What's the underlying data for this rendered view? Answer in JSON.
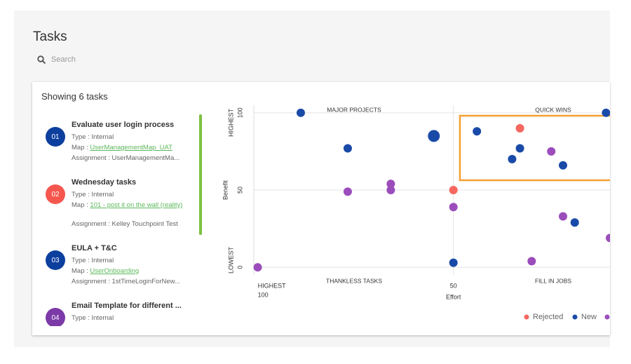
{
  "header": {
    "title": "Tasks",
    "search_placeholder": "Search"
  },
  "panel": {
    "title": "Showing 6 tasks"
  },
  "tasks": [
    {
      "number": "01",
      "color": "#0d3f9e",
      "title": "Evaluate user login process",
      "type": "Type : Internal",
      "map_label": "Map :",
      "map": "UserManagementMap_UAT",
      "assignment": "Assignment : UserManagementMa..."
    },
    {
      "number": "02",
      "color": "#f5574f",
      "title": "Wednesday tasks",
      "type": "Type : Internal",
      "map_label": "Map :",
      "map": "101 - post it on the wall (reality)",
      "assignment": "Assignment : Kelley Touchpoint Test"
    },
    {
      "number": "03",
      "color": "#0d3f9e",
      "title": "EULA + T&C",
      "type": "Type : Internal",
      "map_label": "Map :",
      "map": "UserOnboarding",
      "assignment": "Assignment : 1stTimeLoginForNew..."
    },
    {
      "number": "04",
      "color": "#7b3aa8",
      "title": "Email Template for different ...",
      "type": "Type : Internal"
    }
  ],
  "chart_data": {
    "type": "scatter",
    "quadrants": [
      "MAJOR PROJECTS",
      "QUICK WINS",
      "THANKLESS TASKS",
      "FILL IN JOBS"
    ],
    "x_label": "Effort",
    "y_label": "Benefit",
    "x_high_label": "HIGHEST",
    "y_high_label": "HIGHEST",
    "y_low_label": "LOWEST",
    "xlim": [
      101,
      10
    ],
    "ylim": [
      -4,
      104
    ],
    "xticks": [
      100,
      50
    ],
    "yticks": [
      100,
      50,
      0
    ],
    "grid": true,
    "series": [
      {
        "name": "Rejected",
        "color": "#f5675f",
        "x": [
          50,
          33
        ],
        "values": [
          50,
          90
        ]
      },
      {
        "name": "New",
        "color": "#1a4aa8",
        "x": [
          89,
          77,
          55,
          50,
          44,
          33,
          35,
          22,
          11,
          19
        ],
        "values": [
          100,
          77,
          85,
          3,
          88,
          77,
          70,
          66,
          100,
          29
        ],
        "sizes": [
          1,
          1,
          2,
          1,
          1,
          1,
          1,
          1,
          1,
          1
        ]
      },
      {
        "color": "#9b4dbb",
        "x": [
          77,
          66,
          66,
          50,
          100,
          25,
          22,
          30,
          10
        ],
        "values": [
          49,
          54,
          50,
          39,
          0,
          75,
          33,
          4,
          19
        ]
      }
    ]
  }
}
